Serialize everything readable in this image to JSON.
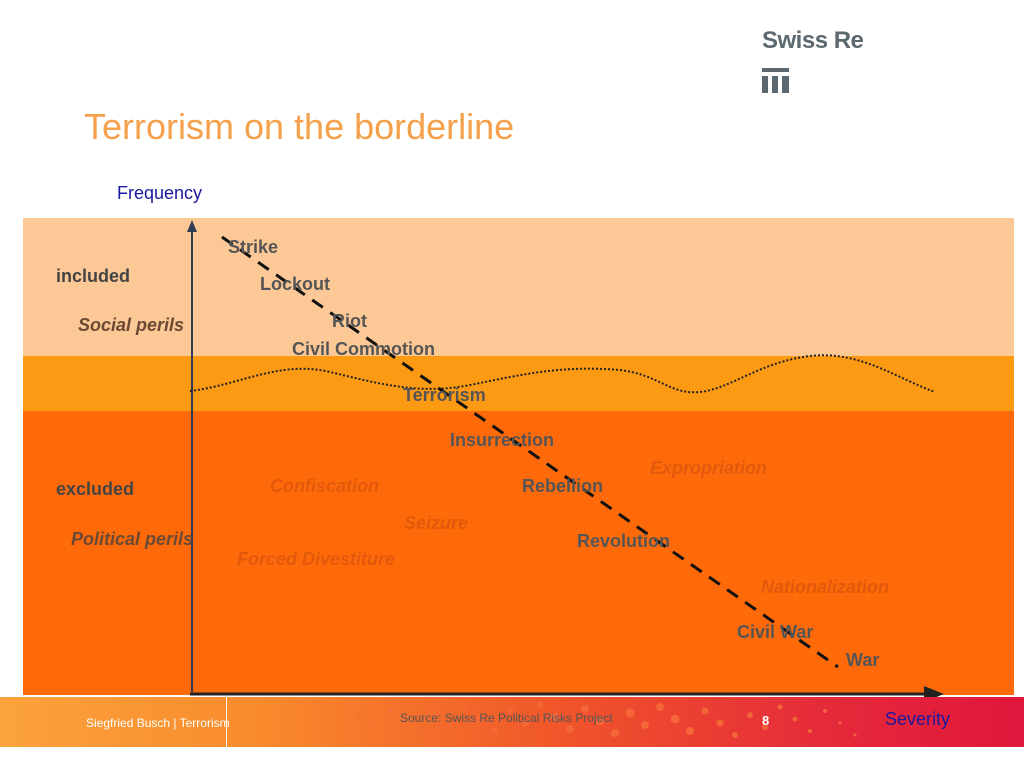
{
  "brand": {
    "name": "Swiss Re",
    "logo_icon": "swiss-re-mark"
  },
  "title": "Terrorism on the borderline",
  "axes": {
    "y_label": "Frequency",
    "x_label": "Severity"
  },
  "bands": [
    {
      "id": "top",
      "color": "#fcc895"
    },
    {
      "id": "mid",
      "color": "#fd9a13"
    },
    {
      "id": "bottom",
      "color": "#fe6a0a"
    }
  ],
  "side_labels": {
    "included": "included",
    "social_perils": "Social perils",
    "excluded": "excluded",
    "political_perils": "Political perils"
  },
  "perils": {
    "strike": "Strike",
    "lockout": "Lockout",
    "riot": "Riot",
    "civil_commotion": "Civil Commotion",
    "terrorism": "Terrorism",
    "insurrection": "Insurrection",
    "expropriation": "Expropriation",
    "confiscation": "Confiscation",
    "rebellion": "Rebellion",
    "seizure": "Seizure",
    "revolution": "Revolution",
    "forced_divestiture": "Forced Divestiture",
    "nationalization": "Nationalization",
    "civil_war": "Civil War",
    "war": "War"
  },
  "footer": {
    "author": "Siegfried Busch | Terrorism",
    "source": "Source: Swiss Re Political Risks Project",
    "page": "8"
  }
}
